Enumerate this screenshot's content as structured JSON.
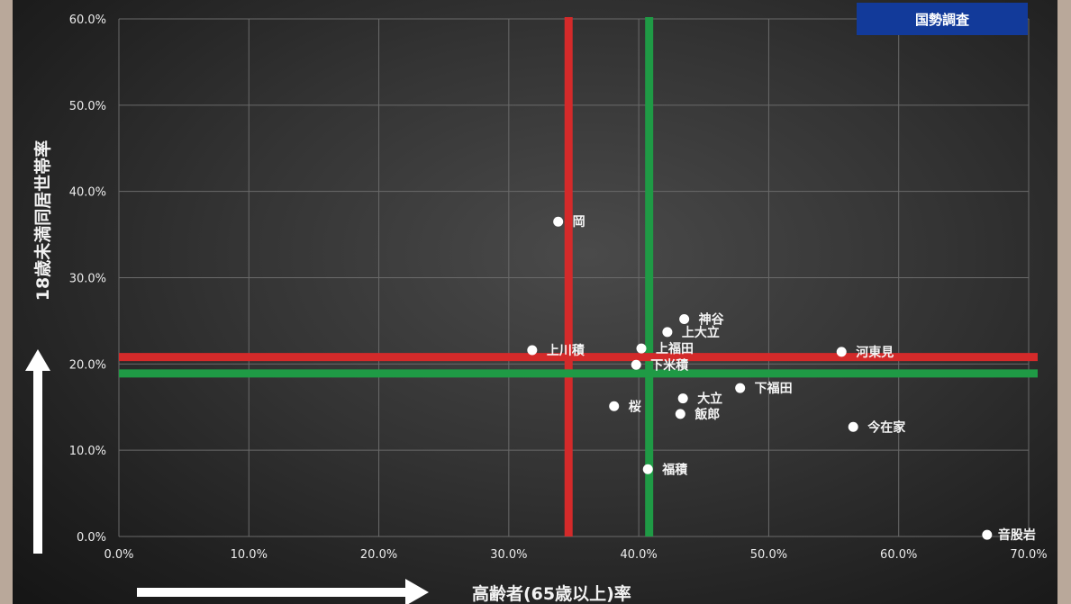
{
  "chart_data": {
    "type": "scatter",
    "badge": "国勢調査",
    "xlabel": "高齢者(65歳以上)率",
    "ylabel": "18歳未満同居世帯率",
    "xlim": [
      0,
      70
    ],
    "ylim": [
      0,
      60
    ],
    "x_ticks": [
      "0.0%",
      "10.0%",
      "20.0%",
      "30.0%",
      "40.0%",
      "50.0%",
      "60.0%",
      "70.0%"
    ],
    "y_ticks": [
      "0.0%",
      "10.0%",
      "20.0%",
      "30.0%",
      "40.0%",
      "50.0%",
      "60.0%"
    ],
    "grid": true,
    "points": [
      {
        "label": "岡",
        "x": 33.8,
        "y": 36.5
      },
      {
        "label": "神谷",
        "x": 43.5,
        "y": 25.2
      },
      {
        "label": "上大立",
        "x": 42.2,
        "y": 23.7
      },
      {
        "label": "上川積",
        "x": 31.8,
        "y": 21.6
      },
      {
        "label": "上福田",
        "x": 40.2,
        "y": 21.8
      },
      {
        "label": "河東見",
        "x": 55.6,
        "y": 21.4
      },
      {
        "label": "下米積",
        "x": 39.8,
        "y": 19.9
      },
      {
        "label": "下福田",
        "x": 47.8,
        "y": 17.2
      },
      {
        "label": "大立",
        "x": 43.4,
        "y": 16.0
      },
      {
        "label": "桜",
        "x": 38.1,
        "y": 15.1
      },
      {
        "label": "飯郎",
        "x": 43.2,
        "y": 14.2
      },
      {
        "label": "今在家",
        "x": 56.5,
        "y": 12.7
      },
      {
        "label": "福積",
        "x": 40.7,
        "y": 7.8
      },
      {
        "label": "音股岩",
        "x": 66.8,
        "y": 0.2
      }
    ],
    "reference_lines": [
      {
        "orientation": "vertical",
        "value": 34.6,
        "color": "#d42a2a"
      },
      {
        "orientation": "vertical",
        "value": 40.8,
        "color": "#1f9a45"
      },
      {
        "orientation": "horizontal",
        "value": 20.8,
        "color": "#d42a2a"
      },
      {
        "orientation": "horizontal",
        "value": 18.9,
        "color": "#1f9a45"
      }
    ],
    "colors": {
      "badge": "#123a9a",
      "points": "#ffffff",
      "grid": "#6a6a6a",
      "arrows": "#ffffff"
    }
  }
}
